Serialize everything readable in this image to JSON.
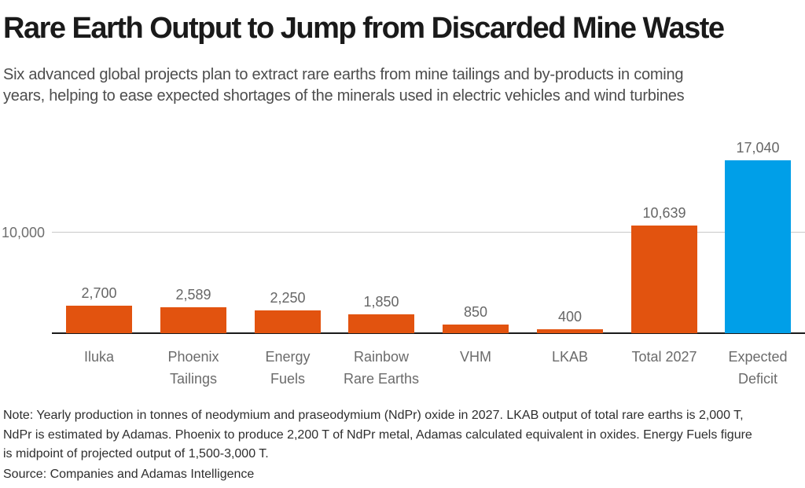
{
  "header": {
    "title": "Rare Earth Output to Jump from Discarded Mine Waste",
    "subtitle": "Six advanced global projects plan to extract rare earths from mine tailings and by-products in coming\nyears, helping to ease expected shortages of the minerals used in electric vehicles and wind turbines"
  },
  "chart_data": {
    "type": "bar",
    "categories": [
      "Iluka",
      "Phoenix\nTailings",
      "Energy\nFuels",
      "Rainbow\nRare Earths",
      "VHM",
      "LKAB",
      "Total 2027",
      "Expected\nDeficit"
    ],
    "values": [
      2700,
      2589,
      2250,
      1850,
      850,
      400,
      10639,
      17040
    ],
    "value_labels": [
      "2,700",
      "2,589",
      "2,250",
      "1,850",
      "850",
      "400",
      "10,639",
      "17,040"
    ],
    "bar_colors": [
      "#e2530f",
      "#e2530f",
      "#e2530f",
      "#e2530f",
      "#e2530f",
      "#e2530f",
      "#e2530f",
      "#009fe8"
    ],
    "title": "Rare Earth Output to Jump from Discarded Mine Waste",
    "xlabel": "",
    "ylabel": "",
    "ylim": [
      0,
      18500
    ],
    "yticks": [
      {
        "value": 10000,
        "label": "10,000"
      }
    ],
    "grid": "single horizontal gridline at 10,000",
    "legend": "none",
    "colors": {
      "bar_default": "#e2530f",
      "bar_highlight": "#009fe8",
      "gridline": "#c9c9c9",
      "axis_line": "#1a1a1a",
      "label_gray": "#6b6b6b"
    }
  },
  "footer": {
    "note": "Note: Yearly production in tonnes of neodymium and praseodymium (NdPr) oxide in 2027. LKAB output of total rare earths is 2,000 T,\nNdPr is estimated by Adamas. Phoenix to produce 2,200 T of NdPr metal, Adamas calculated equivalent in oxides. Energy Fuels figure\nis midpoint of projected output of 1,500-3,000 T.",
    "source": "Source: Companies and Adamas Intelligence"
  }
}
